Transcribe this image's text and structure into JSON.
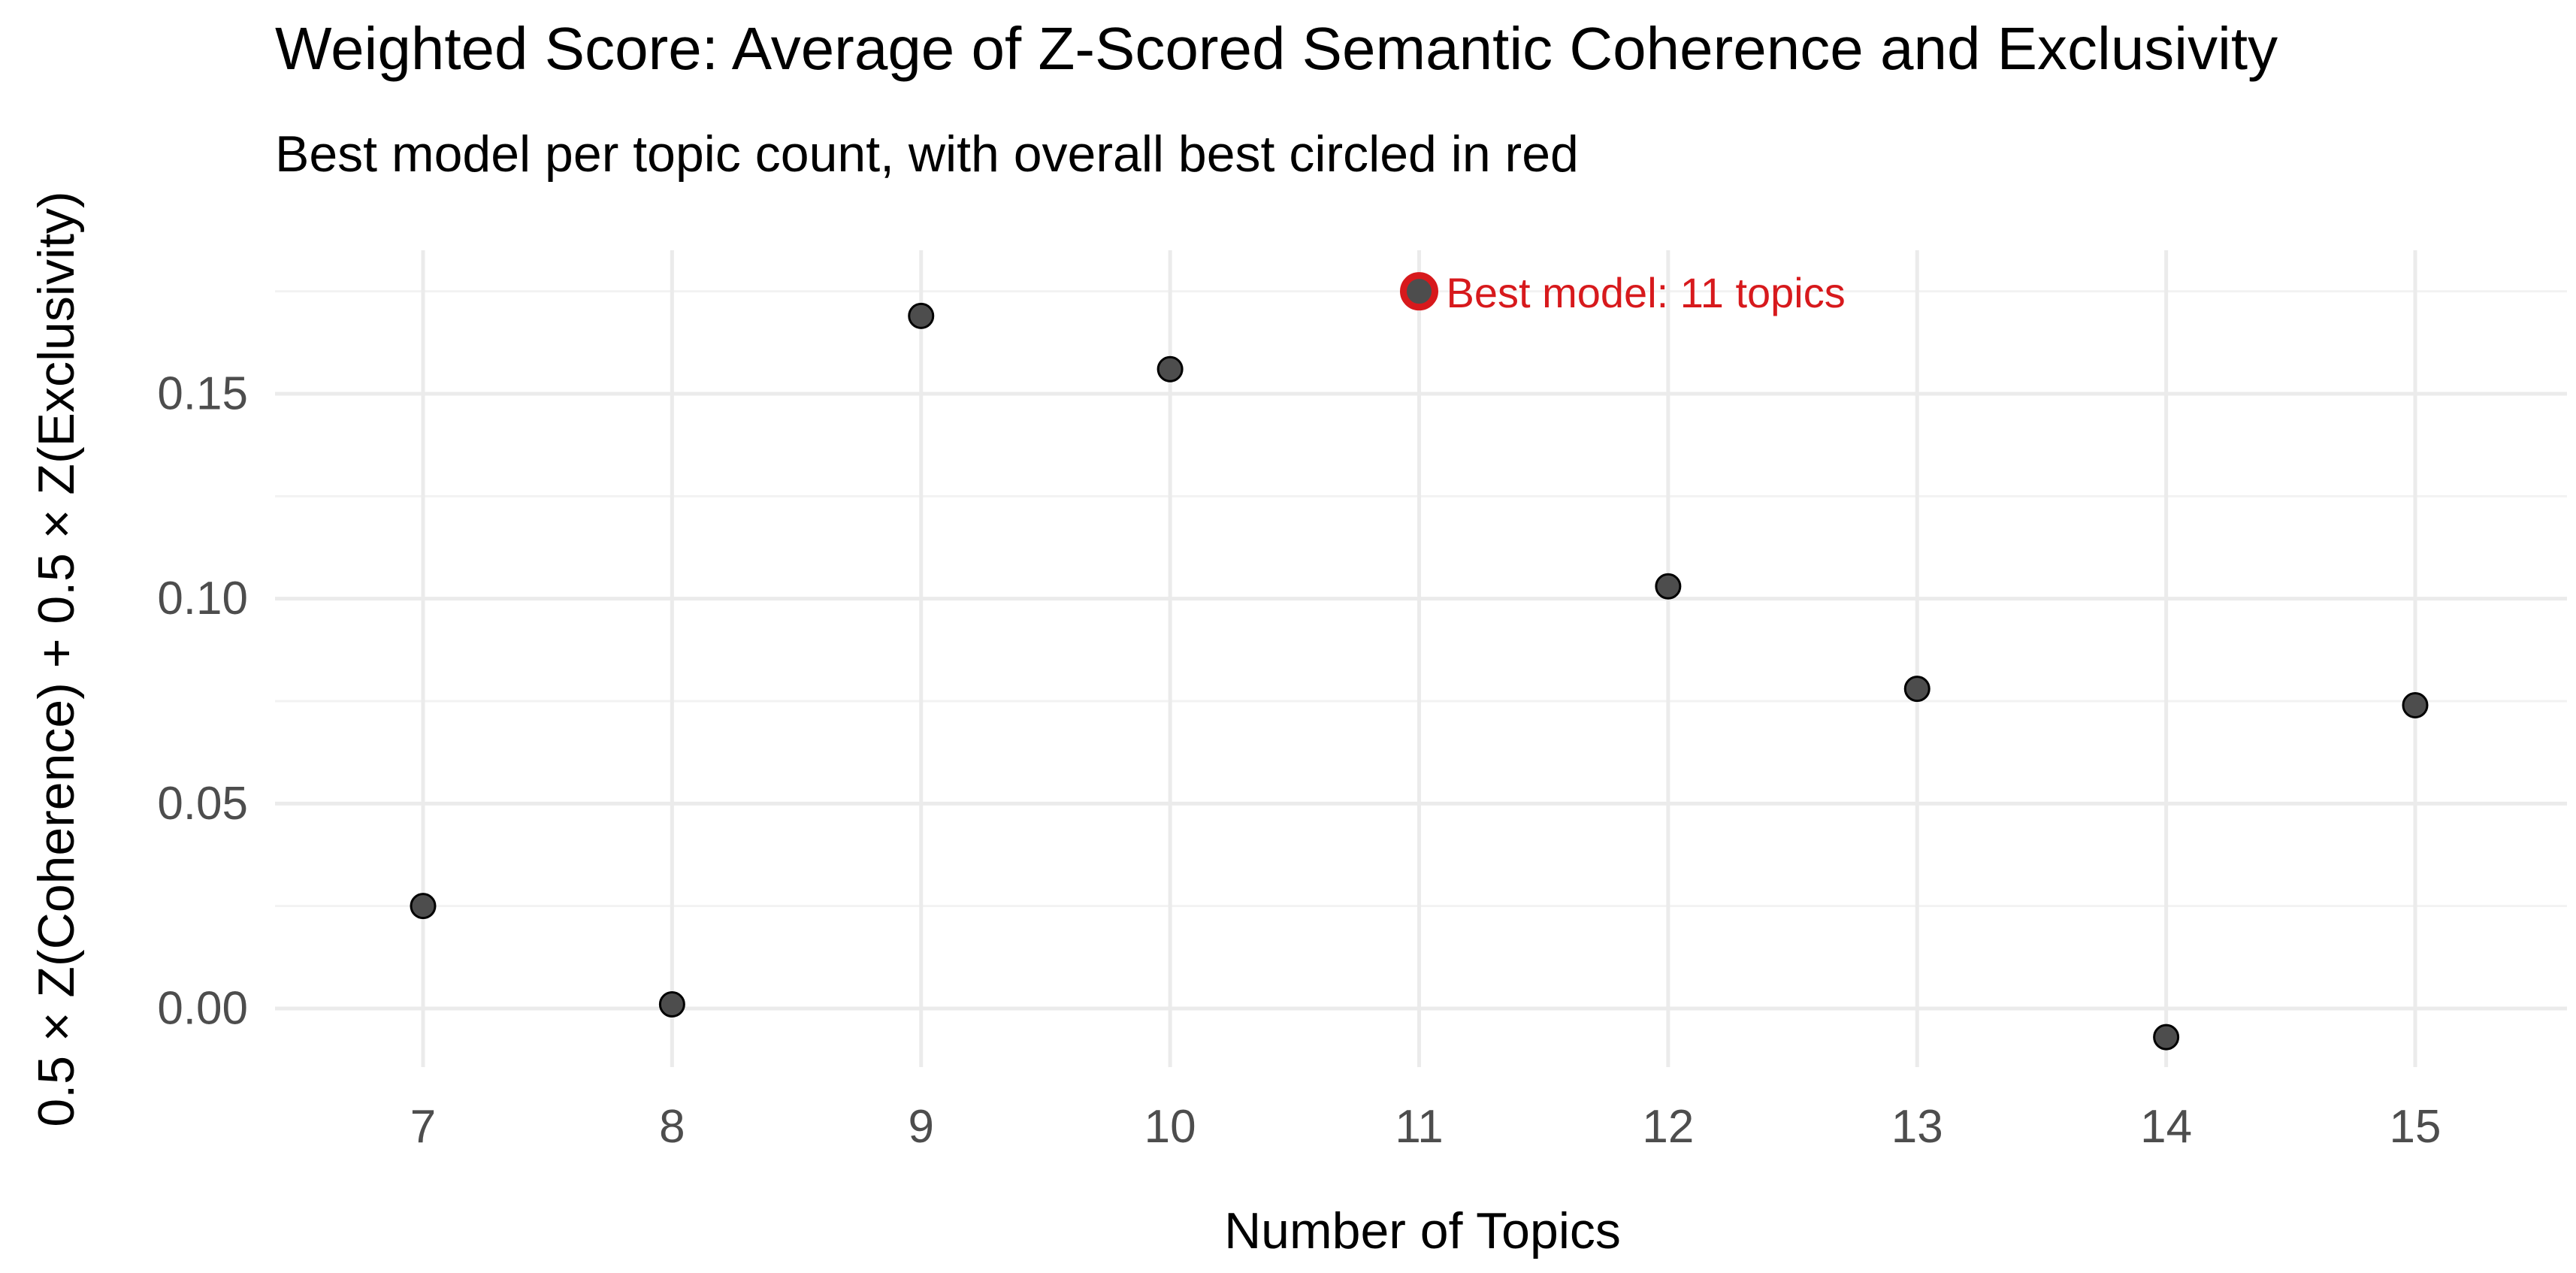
{
  "colors": {
    "background": "#ffffff",
    "grid_major": "#ebebeb",
    "grid_minor": "#f2f2f2",
    "point_fill": "#4d4d4d",
    "point_outline": "#000000",
    "highlight": "#d7191c",
    "tick_text": "#4d4d4d",
    "title_text": "#000000"
  },
  "chart_data": {
    "type": "scatter",
    "title": "Weighted Score: Average of Z-Scored Semantic Coherence and Exclusivity",
    "subtitle": "Best model per topic count, with overall best circled in red",
    "xlabel": "Number of Topics",
    "ylabel": "0.5 × Z(Coherence) + 0.5 × Z(Exclusivity)",
    "xlim": [
      6.4,
      15.6
    ],
    "ylim": [
      -0.016,
      0.185
    ],
    "x_ticks": [
      7,
      8,
      9,
      10,
      11,
      12,
      13,
      14,
      15
    ],
    "x_tick_labels": [
      "7",
      "8",
      "9",
      "10",
      "11",
      "12",
      "13",
      "14",
      "15"
    ],
    "y_ticks": [
      0.0,
      0.05,
      0.1,
      0.15
    ],
    "y_tick_labels": [
      "0.00",
      "0.05",
      "0.10",
      "0.15"
    ],
    "y_minor_ticks": [
      0.025,
      0.075,
      0.125,
      0.175
    ],
    "grid": true,
    "legend": "none",
    "series": [
      {
        "x": [
          7,
          8,
          9,
          10,
          11,
          12,
          13,
          14,
          15
        ],
        "y": [
          0.025,
          0.001,
          0.169,
          0.156,
          0.175,
          0.103,
          0.078,
          -0.007,
          0.074
        ]
      }
    ],
    "highlight": {
      "x": 11,
      "y": 0.175,
      "label": "Best model: 11 topics"
    }
  }
}
